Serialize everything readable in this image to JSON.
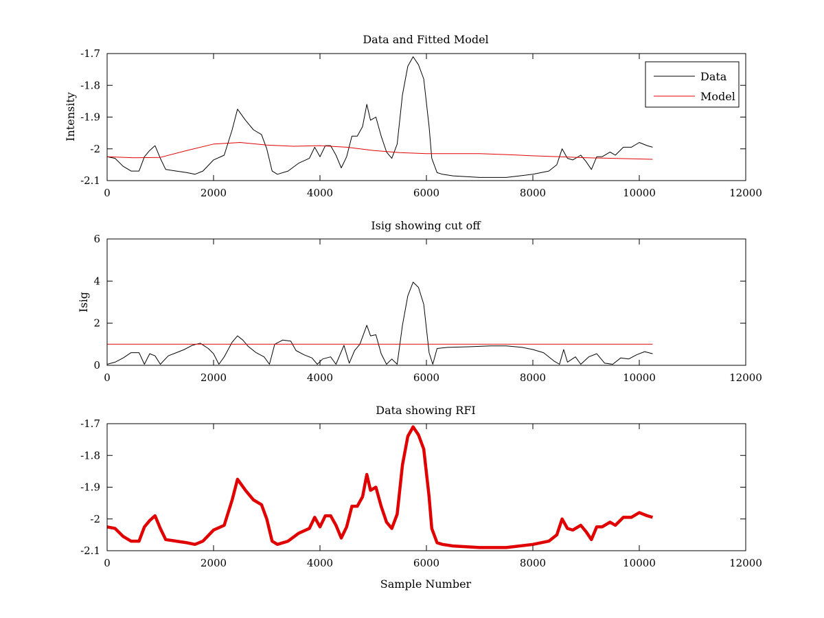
{
  "chart_data": [
    {
      "type": "line",
      "title": "Data and Fitted Model",
      "xlabel": "",
      "ylabel": "Intensity",
      "xlim": [
        0,
        12000
      ],
      "ylim": [
        -2.1,
        -1.7
      ],
      "xticks": [
        "0",
        "2000",
        "4000",
        "6000",
        "8000",
        "10000",
        "12000"
      ],
      "yticks": [
        "-2.1",
        "-2",
        "-1.9",
        "-1.8",
        "-1.7"
      ],
      "grid": false,
      "legend": {
        "position": "top-right",
        "entries": [
          "Data",
          "Model"
        ]
      },
      "series": [
        {
          "name": "Data",
          "color": "#000000",
          "x": [
            0,
            150,
            300,
            450,
            600,
            700,
            800,
            900,
            1000,
            1100,
            1300,
            1500,
            1650,
            1800,
            2000,
            2200,
            2350,
            2450,
            2600,
            2750,
            2900,
            3000,
            3100,
            3200,
            3400,
            3600,
            3800,
            3900,
            4000,
            4100,
            4200,
            4300,
            4400,
            4500,
            4600,
            4700,
            4800,
            4880,
            4950,
            5050,
            5150,
            5250,
            5350,
            5450,
            5550,
            5650,
            5750,
            5850,
            5950,
            6050,
            6100,
            6200,
            6300,
            6500,
            7000,
            7500,
            8000,
            8300,
            8450,
            8550,
            8650,
            8750,
            8900,
            9000,
            9100,
            9200,
            9300,
            9450,
            9550,
            9700,
            9850,
            10000,
            10150,
            10250
          ],
          "y": [
            -2.025,
            -2.03,
            -2.055,
            -2.07,
            -2.07,
            -2.025,
            -2.005,
            -1.99,
            -2.03,
            -2.065,
            -2.07,
            -2.075,
            -2.08,
            -2.07,
            -2.035,
            -2.02,
            -1.94,
            -1.875,
            -1.91,
            -1.94,
            -1.955,
            -2.0,
            -2.07,
            -2.08,
            -2.07,
            -2.045,
            -2.03,
            -1.995,
            -2.025,
            -1.99,
            -1.99,
            -2.02,
            -2.06,
            -2.025,
            -1.96,
            -1.96,
            -1.93,
            -1.86,
            -1.91,
            -1.9,
            -1.96,
            -2.01,
            -2.03,
            -1.985,
            -1.83,
            -1.74,
            -1.71,
            -1.735,
            -1.78,
            -1.93,
            -2.03,
            -2.075,
            -2.08,
            -2.085,
            -2.09,
            -2.09,
            -2.08,
            -2.07,
            -2.05,
            -2.0,
            -2.03,
            -2.035,
            -2.02,
            -2.04,
            -2.065,
            -2.025,
            -2.025,
            -2.01,
            -2.02,
            -1.995,
            -1.995,
            -1.98,
            -1.99,
            -1.995
          ]
        },
        {
          "name": "Model",
          "color": "#e00000",
          "x": [
            0,
            500,
            1000,
            1500,
            2000,
            2500,
            3000,
            3500,
            4000,
            4500,
            5000,
            5500,
            6000,
            6500,
            7000,
            7500,
            8000,
            8500,
            9000,
            9500,
            10000,
            10250
          ],
          "y": [
            -2.025,
            -2.028,
            -2.027,
            -2.005,
            -1.985,
            -1.98,
            -1.988,
            -1.992,
            -1.99,
            -1.995,
            -2.005,
            -2.012,
            -2.015,
            -2.015,
            -2.015,
            -2.018,
            -2.022,
            -2.025,
            -2.028,
            -2.03,
            -2.032,
            -2.033
          ]
        }
      ]
    },
    {
      "type": "line",
      "title": "Isig showing cut off",
      "xlabel": "",
      "ylabel": "Isig",
      "xlim": [
        0,
        12000
      ],
      "ylim": [
        0,
        6
      ],
      "xticks": [
        "0",
        "2000",
        "4000",
        "6000",
        "8000",
        "10000",
        "12000"
      ],
      "yticks": [
        "0",
        "2",
        "4",
        "6"
      ],
      "grid": false,
      "series": [
        {
          "color": "#000000",
          "x": [
            0,
            150,
            300,
            450,
            600,
            700,
            800,
            900,
            1000,
            1150,
            1300,
            1450,
            1600,
            1750,
            1900,
            2000,
            2100,
            2200,
            2350,
            2450,
            2550,
            2650,
            2800,
            2950,
            3050,
            3150,
            3300,
            3450,
            3550,
            3700,
            3850,
            3950,
            4050,
            4200,
            4300,
            4450,
            4550,
            4650,
            4750,
            4880,
            4950,
            5050,
            5150,
            5250,
            5350,
            5450,
            5550,
            5650,
            5750,
            5850,
            5950,
            6050,
            6120,
            6200,
            6400,
            6800,
            7200,
            7500,
            7800,
            8000,
            8200,
            8400,
            8500,
            8580,
            8650,
            8800,
            8900,
            9050,
            9200,
            9350,
            9500,
            9650,
            9800,
            9950,
            10100,
            10250
          ],
          "y": [
            0.05,
            0.15,
            0.35,
            0.6,
            0.6,
            0.05,
            0.55,
            0.45,
            0.05,
            0.45,
            0.6,
            0.75,
            0.95,
            1.05,
            0.8,
            0.55,
            0.05,
            0.4,
            1.1,
            1.4,
            1.2,
            0.9,
            0.6,
            0.4,
            0.05,
            1.0,
            1.2,
            1.15,
            0.7,
            0.5,
            0.35,
            0.05,
            0.3,
            0.4,
            0.05,
            0.95,
            0.1,
            0.7,
            1.0,
            1.9,
            1.4,
            1.45,
            0.55,
            0.05,
            0.3,
            0.05,
            1.9,
            3.3,
            3.95,
            3.7,
            2.9,
            0.6,
            0.05,
            0.8,
            0.85,
            0.88,
            0.92,
            0.92,
            0.85,
            0.75,
            0.6,
            0.2,
            0.05,
            0.75,
            0.15,
            0.4,
            0.05,
            0.4,
            0.55,
            0.1,
            0.05,
            0.35,
            0.3,
            0.5,
            0.65,
            0.55
          ]
        },
        {
          "color": "#e00000",
          "x": [
            0,
            10250
          ],
          "y": [
            1.0,
            1.0
          ]
        }
      ]
    },
    {
      "type": "line",
      "title": "Data showing RFI",
      "xlabel": "Sample Number",
      "ylabel": "",
      "xlim": [
        0,
        12000
      ],
      "ylim": [
        -2.1,
        -1.7
      ],
      "xticks": [
        "0",
        "2000",
        "4000",
        "6000",
        "8000",
        "10000",
        "12000"
      ],
      "yticks": [
        "-2.1",
        "-2",
        "-1.9",
        "-1.8",
        "-1.7"
      ],
      "grid": false,
      "series": [
        {
          "color": "#e00000",
          "x": [
            0,
            150,
            300,
            450,
            600,
            700,
            800,
            900,
            1000,
            1100,
            1300,
            1500,
            1650,
            1800,
            2000,
            2200,
            2350,
            2450,
            2600,
            2750,
            2900,
            3000,
            3100,
            3200,
            3400,
            3600,
            3800,
            3900,
            4000,
            4100,
            4200,
            4300,
            4400,
            4500,
            4600,
            4700,
            4800,
            4880,
            4950,
            5050,
            5150,
            5250,
            5350,
            5450,
            5550,
            5650,
            5750,
            5850,
            5950,
            6050,
            6100,
            6200,
            6300,
            6500,
            7000,
            7500,
            8000,
            8300,
            8450,
            8550,
            8650,
            8750,
            8900,
            9000,
            9100,
            9200,
            9300,
            9450,
            9550,
            9700,
            9850,
            10000,
            10150,
            10250
          ],
          "y": [
            -2.025,
            -2.03,
            -2.055,
            -2.07,
            -2.07,
            -2.025,
            -2.005,
            -1.99,
            -2.03,
            -2.065,
            -2.07,
            -2.075,
            -2.08,
            -2.07,
            -2.035,
            -2.02,
            -1.94,
            -1.875,
            -1.91,
            -1.94,
            -1.955,
            -2.0,
            -2.07,
            -2.08,
            -2.07,
            -2.045,
            -2.03,
            -1.995,
            -2.025,
            -1.99,
            -1.99,
            -2.02,
            -2.06,
            -2.025,
            -1.96,
            -1.96,
            -1.93,
            -1.86,
            -1.91,
            -1.9,
            -1.96,
            -2.01,
            -2.03,
            -1.985,
            -1.83,
            -1.74,
            -1.71,
            -1.735,
            -1.78,
            -1.93,
            -2.03,
            -2.075,
            -2.08,
            -2.085,
            -2.09,
            -2.09,
            -2.08,
            -2.07,
            -2.05,
            -2.0,
            -2.03,
            -2.035,
            -2.02,
            -2.04,
            -2.065,
            -2.025,
            -2.025,
            -2.01,
            -2.02,
            -1.995,
            -1.995,
            -1.98,
            -1.99,
            -1.995
          ]
        }
      ]
    }
  ]
}
